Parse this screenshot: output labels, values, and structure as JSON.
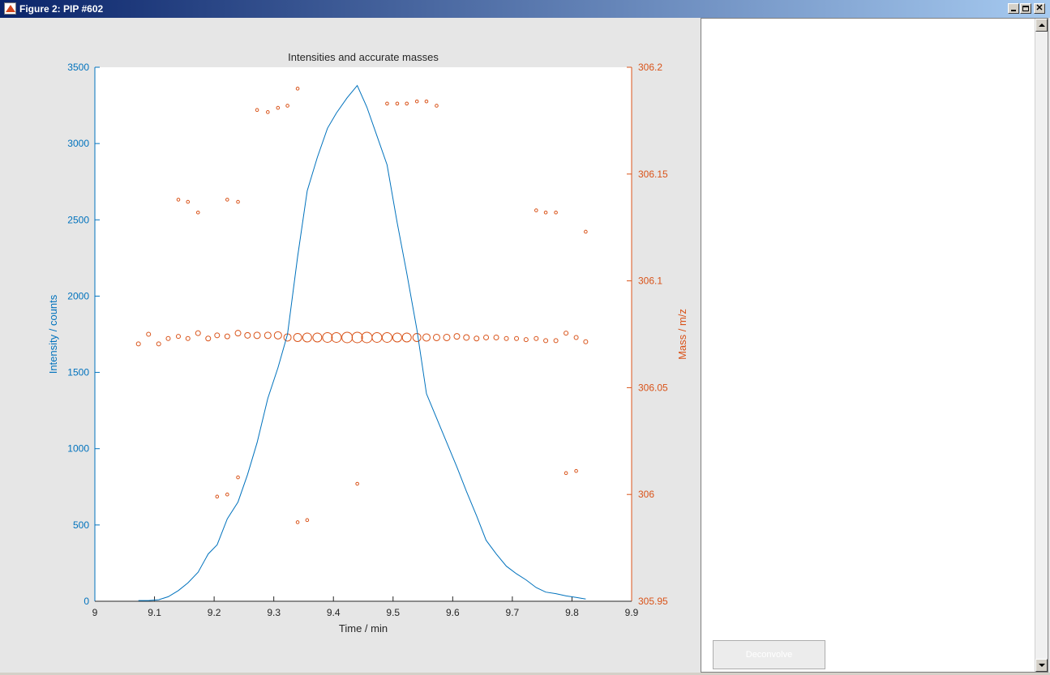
{
  "window": {
    "title": "Figure 2: PIP #602",
    "app_icon": "matlab-logo-icon",
    "controls": [
      "minimize-icon",
      "maximize-icon",
      "close-icon"
    ]
  },
  "side_panel": {
    "button_label": "Deconvolve",
    "scroll_icons": [
      "scroll-up-arrow-icon",
      "scroll-down-arrow-icon"
    ]
  },
  "chart_data": {
    "type": "line",
    "title": "Intensities and accurate masses",
    "xlabel": "Time / min",
    "ylabel_left": "Intensity / counts",
    "ylabel_right": "Mass / m/z",
    "xlim": [
      9,
      9.9
    ],
    "ylim_left": [
      0,
      3500
    ],
    "ylim_right": [
      305.95,
      306.2
    ],
    "x_ticks": [
      9,
      9.1,
      9.2,
      9.3,
      9.4,
      9.5,
      9.6,
      9.7,
      9.8,
      9.9
    ],
    "x_tick_labels": [
      "9",
      "9.1",
      "9.2",
      "9.3",
      "9.4",
      "9.5",
      "9.6",
      "9.7",
      "9.8",
      "9.9"
    ],
    "y_left_ticks": [
      0,
      500,
      1000,
      1500,
      2000,
      2500,
      3000,
      3500
    ],
    "y_left_tick_labels": [
      "0",
      "500",
      "1000",
      "1500",
      "2000",
      "2500",
      "3000",
      "3500"
    ],
    "y_right_ticks": [
      305.95,
      306,
      306.05,
      306.1,
      306.15,
      306.2
    ],
    "y_right_tick_labels": [
      "305.95",
      "306",
      "306.05",
      "306.1",
      "306.15",
      "306.2"
    ],
    "grid": false,
    "colors": {
      "intensity": "#0072bd",
      "mass": "#d95319",
      "axes_text": "#262626"
    },
    "intensity_series": {
      "axis": "left",
      "x": [
        9.073,
        9.09,
        9.107,
        9.123,
        9.14,
        9.156,
        9.173,
        9.19,
        9.205,
        9.222,
        9.24,
        9.256,
        9.272,
        9.29,
        9.307,
        9.323,
        9.34,
        9.356,
        9.373,
        9.39,
        9.405,
        9.423,
        9.44,
        9.456,
        9.473,
        9.49,
        9.507,
        9.523,
        9.54,
        9.556,
        9.573,
        9.59,
        9.607,
        9.623,
        9.64,
        9.656,
        9.673,
        9.69,
        9.707,
        9.723,
        9.74,
        9.756,
        9.773,
        9.79,
        9.807,
        9.823
      ],
      "y": [
        5,
        5,
        10,
        30,
        70,
        120,
        190,
        310,
        370,
        540,
        650,
        830,
        1040,
        1330,
        1530,
        1750,
        2260,
        2690,
        2910,
        3100,
        3200,
        3300,
        3380,
        3240,
        3050,
        2860,
        2480,
        2150,
        1780,
        1360,
        1200,
        1040,
        880,
        720,
        560,
        400,
        310,
        230,
        180,
        140,
        90,
        60,
        50,
        35,
        25,
        15
      ]
    },
    "mass_points": {
      "axis": "right",
      "x": [
        9.073,
        9.09,
        9.107,
        9.123,
        9.14,
        9.156,
        9.173,
        9.19,
        9.205,
        9.222,
        9.24,
        9.256,
        9.272,
        9.29,
        9.307,
        9.323,
        9.34,
        9.356,
        9.373,
        9.39,
        9.405,
        9.423,
        9.44,
        9.456,
        9.473,
        9.49,
        9.507,
        9.523,
        9.54,
        9.556,
        9.573,
        9.59,
        9.607,
        9.623,
        9.64,
        9.656,
        9.673,
        9.69,
        9.707,
        9.723,
        9.74,
        9.756,
        9.773,
        9.79,
        9.807,
        9.823
      ],
      "y": [
        306.0705,
        306.075,
        306.0705,
        306.073,
        306.074,
        306.073,
        306.0755,
        306.073,
        306.0745,
        306.074,
        306.0755,
        306.0745,
        306.0745,
        306.0745,
        306.0745,
        306.0735,
        306.0735,
        306.0735,
        306.0735,
        306.0735,
        306.0735,
        306.0735,
        306.0735,
        306.0735,
        306.0735,
        306.0735,
        306.0735,
        306.0735,
        306.0735,
        306.0735,
        306.0735,
        306.0735,
        306.074,
        306.0735,
        306.073,
        306.0735,
        306.0735,
        306.073,
        306.073,
        306.0725,
        306.073,
        306.072,
        306.072,
        306.0755,
        306.0735,
        306.0715
      ],
      "size": [
        4,
        4,
        4,
        4,
        4,
        4,
        5,
        5,
        5,
        5,
        6,
        6,
        7,
        7,
        8,
        8,
        9,
        10,
        10,
        11,
        11,
        12,
        12,
        12,
        11,
        11,
        10,
        10,
        9,
        8,
        7,
        7,
        6,
        6,
        5,
        5,
        5,
        4,
        4,
        4,
        4,
        4,
        4,
        4,
        4,
        4
      ]
    },
    "mass_outliers": {
      "axis": "right",
      "x": [
        9.14,
        9.156,
        9.173,
        9.222,
        9.24,
        9.272,
        9.29,
        9.307,
        9.323,
        9.34,
        9.49,
        9.507,
        9.523,
        9.54,
        9.556,
        9.573,
        9.74,
        9.756,
        9.773,
        9.823,
        9.205,
        9.222,
        9.24,
        9.34,
        9.356,
        9.44,
        9.79,
        9.807
      ],
      "y": [
        306.138,
        306.137,
        306.132,
        306.138,
        306.137,
        306.18,
        306.179,
        306.181,
        306.182,
        306.19,
        306.183,
        306.183,
        306.183,
        306.184,
        306.184,
        306.182,
        306.133,
        306.132,
        306.132,
        306.123,
        305.999,
        306.0,
        306.008,
        305.987,
        305.988,
        306.005,
        306.01,
        306.011
      ]
    }
  }
}
